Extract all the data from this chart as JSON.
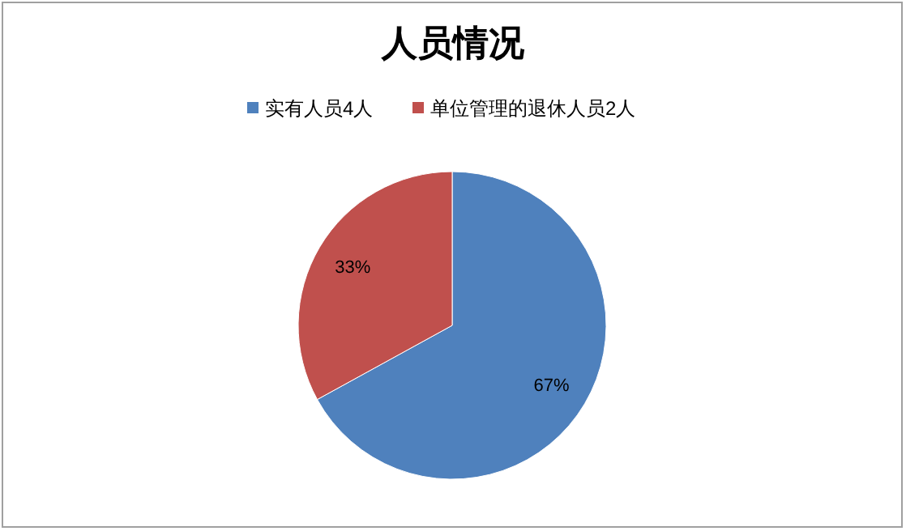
{
  "chart_data": {
    "type": "pie",
    "title": "人员情况",
    "categories": [
      "实有人员4人",
      "单位管理的退休人员2人"
    ],
    "values": [
      67,
      33
    ],
    "colors": [
      "#4f81bd",
      "#c0504d"
    ],
    "value_labels": [
      "67%",
      "33%"
    ],
    "legend": "top"
  }
}
